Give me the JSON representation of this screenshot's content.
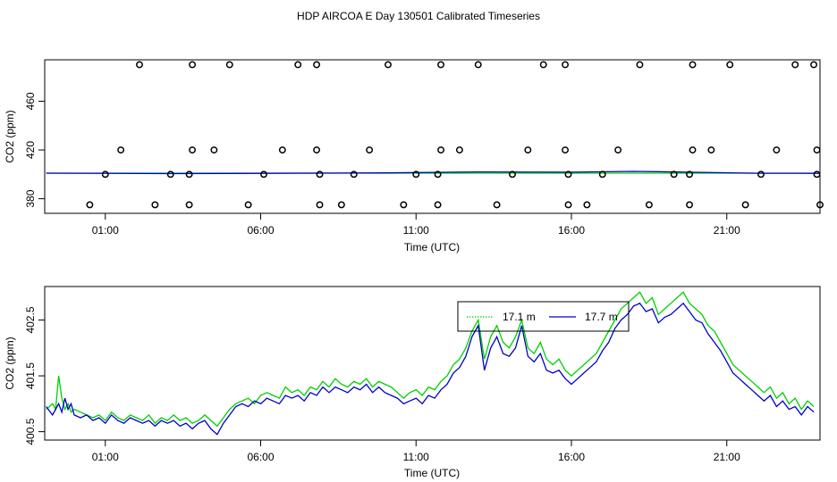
{
  "title": "HDP AIRCOA E  Day 130501  Calibrated Timeseries",
  "colors": {
    "green": "#00d000",
    "blue": "#0000cc",
    "points": "#000000"
  },
  "chart_data": [
    {
      "type": "scatter+line",
      "xlabel": "Time (UTC)",
      "ylabel": "CO2 (ppm)",
      "xlim_hours": [
        -0.95,
        24.0
      ],
      "ylim": [
        368,
        494
      ],
      "x_ticks": [
        {
          "hour": 1,
          "label": "01:00"
        },
        {
          "hour": 6,
          "label": "06:00"
        },
        {
          "hour": 11,
          "label": "11:00"
        },
        {
          "hour": 16,
          "label": "16:00"
        },
        {
          "hour": 21,
          "label": "21:00"
        }
      ],
      "y_ticks": [
        {
          "value": 380,
          "label": "380"
        },
        {
          "value": 420,
          "label": "420"
        },
        {
          "value": 460,
          "label": "460"
        }
      ],
      "calibration_points": [
        {
          "x": 0.5,
          "y": 375
        },
        {
          "x": 2.1,
          "y": 490
        },
        {
          "x": 3.8,
          "y": 490
        },
        {
          "x": 5.0,
          "y": 490
        },
        {
          "x": 7.2,
          "y": 490
        },
        {
          "x": 7.8,
          "y": 490
        },
        {
          "x": 10.1,
          "y": 490
        },
        {
          "x": 11.8,
          "y": 490
        },
        {
          "x": 13.0,
          "y": 490
        },
        {
          "x": 15.1,
          "y": 490
        },
        {
          "x": 15.8,
          "y": 490
        },
        {
          "x": 18.2,
          "y": 490
        },
        {
          "x": 19.9,
          "y": 490
        },
        {
          "x": 21.1,
          "y": 490
        },
        {
          "x": 23.2,
          "y": 490
        },
        {
          "x": 23.8,
          "y": 490
        },
        {
          "x": 1.0,
          "y": 400
        },
        {
          "x": 3.1,
          "y": 400
        },
        {
          "x": 3.7,
          "y": 400
        },
        {
          "x": 6.1,
          "y": 400
        },
        {
          "x": 7.9,
          "y": 400
        },
        {
          "x": 9.0,
          "y": 400
        },
        {
          "x": 11.0,
          "y": 400
        },
        {
          "x": 11.7,
          "y": 400
        },
        {
          "x": 14.1,
          "y": 400
        },
        {
          "x": 15.9,
          "y": 400
        },
        {
          "x": 17.0,
          "y": 400
        },
        {
          "x": 19.3,
          "y": 400
        },
        {
          "x": 19.8,
          "y": 400
        },
        {
          "x": 22.1,
          "y": 400
        },
        {
          "x": 23.9,
          "y": 400
        },
        {
          "x": 1.5,
          "y": 420
        },
        {
          "x": 3.8,
          "y": 420
        },
        {
          "x": 4.5,
          "y": 420
        },
        {
          "x": 6.7,
          "y": 420
        },
        {
          "x": 7.8,
          "y": 420
        },
        {
          "x": 9.5,
          "y": 420
        },
        {
          "x": 11.8,
          "y": 420
        },
        {
          "x": 12.4,
          "y": 420
        },
        {
          "x": 14.6,
          "y": 420
        },
        {
          "x": 15.8,
          "y": 420
        },
        {
          "x": 17.5,
          "y": 420
        },
        {
          "x": 19.9,
          "y": 420
        },
        {
          "x": 20.5,
          "y": 420
        },
        {
          "x": 22.6,
          "y": 420
        },
        {
          "x": 23.9,
          "y": 420
        },
        {
          "x": 2.6,
          "y": 375
        },
        {
          "x": 3.7,
          "y": 375
        },
        {
          "x": 5.6,
          "y": 375
        },
        {
          "x": 7.9,
          "y": 375
        },
        {
          "x": 8.6,
          "y": 375
        },
        {
          "x": 10.6,
          "y": 375
        },
        {
          "x": 11.7,
          "y": 375
        },
        {
          "x": 13.6,
          "y": 375
        },
        {
          "x": 15.9,
          "y": 375
        },
        {
          "x": 16.5,
          "y": 375
        },
        {
          "x": 18.5,
          "y": 375
        },
        {
          "x": 19.8,
          "y": 375
        },
        {
          "x": 21.6,
          "y": 375
        },
        {
          "x": 24.0,
          "y": 375
        }
      ],
      "series": [
        {
          "color": "green",
          "x": [
            -0.9,
            24.0
          ],
          "y": [
            401.0,
            401.0
          ]
        },
        {
          "color": "blue",
          "x": [
            -0.9,
            3.0,
            6.0,
            10.0,
            13.0,
            16.0,
            18.0,
            19.5,
            22.0,
            24.0
          ],
          "y": [
            401.0,
            400.6,
            400.8,
            401.2,
            402.0,
            401.8,
            402.4,
            401.9,
            400.9,
            400.8
          ]
        }
      ]
    },
    {
      "type": "line",
      "xlabel": "Time (UTC)",
      "ylabel": "CO2 (ppm)",
      "xlim_hours": [
        -0.95,
        24.0
      ],
      "ylim": [
        400.35,
        403.1
      ],
      "x_ticks": [
        {
          "hour": 1,
          "label": "01:00"
        },
        {
          "hour": 6,
          "label": "06:00"
        },
        {
          "hour": 11,
          "label": "11:00"
        },
        {
          "hour": 16,
          "label": "16:00"
        },
        {
          "hour": 21,
          "label": "21:00"
        }
      ],
      "y_ticks": [
        {
          "value": 400.5,
          "label": "400.5"
        },
        {
          "value": 401.5,
          "label": "401.5"
        },
        {
          "value": 402.5,
          "label": "402.5"
        }
      ],
      "legend": {
        "position": "top-center",
        "entries": [
          {
            "label": "17.1 m",
            "color": "green",
            "style": "dotted"
          },
          {
            "label": "17.7 m",
            "color": "blue",
            "style": "solid"
          }
        ]
      },
      "series": [
        {
          "name": "17.1 m",
          "color": "green",
          "x": [
            -0.9,
            -0.7,
            -0.6,
            -0.5,
            -0.4,
            -0.3,
            -0.2,
            -0.1,
            0.0,
            0.2,
            0.4,
            0.6,
            0.8,
            1.0,
            1.2,
            1.4,
            1.6,
            1.8,
            2.0,
            2.2,
            2.4,
            2.6,
            2.8,
            3.0,
            3.2,
            3.4,
            3.6,
            3.8,
            4.0,
            4.2,
            4.4,
            4.6,
            4.8,
            5.0,
            5.2,
            5.4,
            5.6,
            5.8,
            6.0,
            6.2,
            6.4,
            6.6,
            6.8,
            7.0,
            7.2,
            7.4,
            7.6,
            7.8,
            8.0,
            8.2,
            8.4,
            8.6,
            8.8,
            9.0,
            9.2,
            9.4,
            9.6,
            9.8,
            10.0,
            10.2,
            10.4,
            10.6,
            10.8,
            11.0,
            11.2,
            11.4,
            11.6,
            11.8,
            12.0,
            12.2,
            12.4,
            12.6,
            12.8,
            13.0,
            13.2,
            13.4,
            13.6,
            13.8,
            14.0,
            14.2,
            14.4,
            14.6,
            14.8,
            15.0,
            15.2,
            15.4,
            15.6,
            15.8,
            16.0,
            16.2,
            16.4,
            16.6,
            16.8,
            17.0,
            17.2,
            17.4,
            17.6,
            17.8,
            18.0,
            18.2,
            18.4,
            18.6,
            18.8,
            19.0,
            19.2,
            19.4,
            19.6,
            19.8,
            20.0,
            20.2,
            20.4,
            20.6,
            20.8,
            21.0,
            21.2,
            21.4,
            21.6,
            21.8,
            22.0,
            22.2,
            22.4,
            22.6,
            22.8,
            23.0,
            23.2,
            23.4,
            23.6,
            23.8
          ],
          "y": [
            400.9,
            401.0,
            400.9,
            401.5,
            401.1,
            400.9,
            401.0,
            400.85,
            400.9,
            400.85,
            400.8,
            400.75,
            400.8,
            400.7,
            400.85,
            400.75,
            400.7,
            400.8,
            400.75,
            400.7,
            400.8,
            400.65,
            400.75,
            400.7,
            400.8,
            400.7,
            400.75,
            400.65,
            400.7,
            400.8,
            400.7,
            400.6,
            400.75,
            400.9,
            401.0,
            401.05,
            401.1,
            401.0,
            401.15,
            401.2,
            401.15,
            401.1,
            401.3,
            401.2,
            401.25,
            401.15,
            401.3,
            401.25,
            401.4,
            401.3,
            401.45,
            401.35,
            401.3,
            401.4,
            401.35,
            401.45,
            401.3,
            401.4,
            401.35,
            401.3,
            401.2,
            401.1,
            401.2,
            401.25,
            401.15,
            401.3,
            401.25,
            401.4,
            401.5,
            401.7,
            401.8,
            402.0,
            402.3,
            402.5,
            401.8,
            402.2,
            402.4,
            402.1,
            402.0,
            402.2,
            402.5,
            402.0,
            401.9,
            402.1,
            401.8,
            401.7,
            401.8,
            401.6,
            401.5,
            401.6,
            401.7,
            401.8,
            401.9,
            402.1,
            402.3,
            402.5,
            402.7,
            402.8,
            402.9,
            403.0,
            402.8,
            402.9,
            402.6,
            402.7,
            402.8,
            402.9,
            403.0,
            402.8,
            402.7,
            402.6,
            402.4,
            402.3,
            402.1,
            401.9,
            401.7,
            401.6,
            401.5,
            401.4,
            401.3,
            401.2,
            401.3,
            401.1,
            401.2,
            401.0,
            401.1,
            400.9,
            401.05,
            400.95
          ]
        },
        {
          "name": "17.7 m",
          "color": "blue",
          "x": [
            -0.9,
            -0.7,
            -0.6,
            -0.5,
            -0.4,
            -0.3,
            -0.2,
            -0.1,
            0.0,
            0.2,
            0.4,
            0.6,
            0.8,
            1.0,
            1.2,
            1.4,
            1.6,
            1.8,
            2.0,
            2.2,
            2.4,
            2.6,
            2.8,
            3.0,
            3.2,
            3.4,
            3.6,
            3.8,
            4.0,
            4.2,
            4.4,
            4.6,
            4.8,
            5.0,
            5.2,
            5.4,
            5.6,
            5.8,
            6.0,
            6.2,
            6.4,
            6.6,
            6.8,
            7.0,
            7.2,
            7.4,
            7.6,
            7.8,
            8.0,
            8.2,
            8.4,
            8.6,
            8.8,
            9.0,
            9.2,
            9.4,
            9.6,
            9.8,
            10.0,
            10.2,
            10.4,
            10.6,
            10.8,
            11.0,
            11.2,
            11.4,
            11.6,
            11.8,
            12.0,
            12.2,
            12.4,
            12.6,
            12.8,
            13.0,
            13.2,
            13.4,
            13.6,
            13.8,
            14.0,
            14.2,
            14.4,
            14.6,
            14.8,
            15.0,
            15.2,
            15.4,
            15.6,
            15.8,
            16.0,
            16.2,
            16.4,
            16.6,
            16.8,
            17.0,
            17.2,
            17.4,
            17.6,
            17.8,
            18.0,
            18.2,
            18.4,
            18.6,
            18.8,
            19.0,
            19.2,
            19.4,
            19.6,
            19.8,
            20.0,
            20.2,
            20.4,
            20.6,
            20.8,
            21.0,
            21.2,
            21.4,
            21.6,
            21.8,
            22.0,
            22.2,
            22.4,
            22.6,
            22.8,
            23.0,
            23.2,
            23.4,
            23.6,
            23.8
          ],
          "y": [
            400.95,
            400.8,
            400.9,
            401.0,
            400.85,
            401.1,
            400.9,
            401.0,
            400.8,
            400.75,
            400.8,
            400.7,
            400.75,
            400.65,
            400.8,
            400.7,
            400.65,
            400.75,
            400.7,
            400.65,
            400.7,
            400.6,
            400.7,
            400.65,
            400.7,
            400.6,
            400.65,
            400.55,
            400.65,
            400.7,
            400.55,
            400.45,
            400.65,
            400.8,
            400.95,
            401.0,
            400.95,
            401.05,
            401.0,
            401.1,
            401.05,
            401.0,
            401.15,
            401.1,
            401.15,
            401.05,
            401.2,
            401.15,
            401.3,
            401.2,
            401.3,
            401.25,
            401.2,
            401.3,
            401.25,
            401.35,
            401.2,
            401.3,
            401.2,
            401.15,
            401.1,
            401.0,
            401.05,
            401.1,
            401.0,
            401.15,
            401.1,
            401.25,
            401.35,
            401.55,
            401.65,
            401.85,
            402.2,
            402.4,
            401.6,
            402.0,
            402.2,
            401.9,
            401.85,
            402.0,
            402.4,
            401.85,
            401.75,
            401.9,
            401.6,
            401.55,
            401.6,
            401.45,
            401.35,
            401.45,
            401.55,
            401.65,
            401.75,
            401.95,
            402.1,
            402.35,
            402.5,
            402.6,
            402.75,
            402.8,
            402.65,
            402.7,
            402.45,
            402.55,
            402.6,
            402.7,
            402.8,
            402.65,
            402.5,
            402.45,
            402.25,
            402.1,
            401.95,
            401.75,
            401.55,
            401.45,
            401.35,
            401.25,
            401.15,
            401.05,
            401.15,
            400.95,
            401.05,
            400.9,
            400.95,
            400.8,
            400.95,
            400.85
          ]
        }
      ]
    }
  ]
}
